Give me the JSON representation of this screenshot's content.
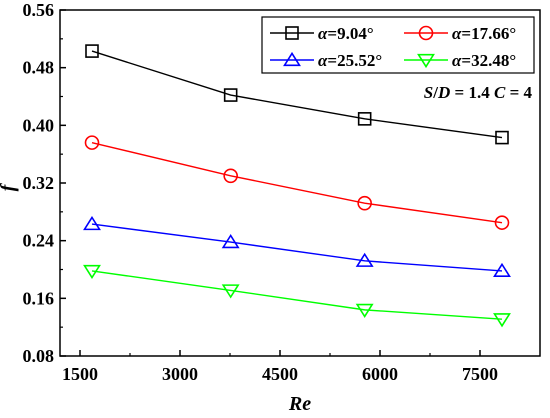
{
  "chart_data": {
    "type": "line",
    "title": "",
    "xlabel": "Re",
    "ylabel": "f",
    "xlim": [
      1200,
      8400
    ],
    "ylim": [
      0.08,
      0.56
    ],
    "xticks": [
      1500,
      3000,
      4500,
      6000,
      7500
    ],
    "yticks": [
      0.08,
      0.16,
      0.24,
      0.32,
      0.4,
      0.48,
      0.56
    ],
    "grid": false,
    "legend_position": "top-right",
    "annotation": "S/D = 1.4 C = 4",
    "series": [
      {
        "name": "α=9.04°",
        "color": "#000000",
        "marker": "square",
        "x": [
          1680,
          3760,
          5770,
          7830
        ],
        "y": [
          0.503,
          0.442,
          0.409,
          0.383
        ]
      },
      {
        "name": "α=17.66°",
        "color": "#ff0000",
        "marker": "circle",
        "x": [
          1680,
          3760,
          5770,
          7830
        ],
        "y": [
          0.376,
          0.33,
          0.292,
          0.265
        ]
      },
      {
        "name": "α=25.52°",
        "color": "#0000ff",
        "marker": "triangle-up",
        "x": [
          1680,
          3760,
          5770,
          7830
        ],
        "y": [
          0.263,
          0.238,
          0.212,
          0.198
        ]
      },
      {
        "name": "α=32.48°",
        "color": "#00ff00",
        "marker": "triangle-down",
        "x": [
          1680,
          3760,
          5770,
          7830
        ],
        "y": [
          0.198,
          0.171,
          0.144,
          0.131
        ]
      }
    ]
  }
}
